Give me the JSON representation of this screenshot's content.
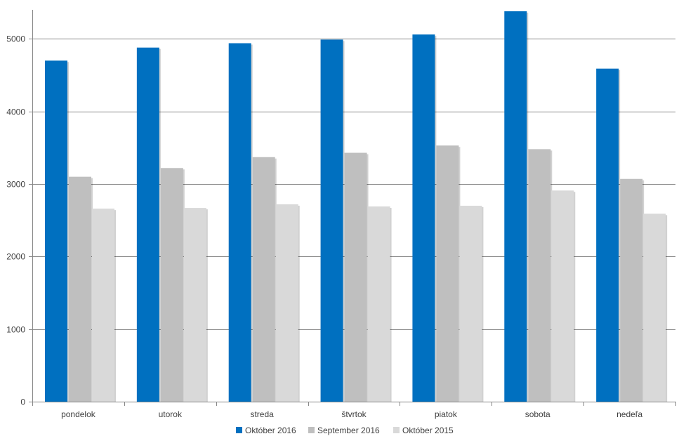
{
  "chart_data": {
    "type": "bar",
    "categories": [
      "pondelok",
      "utorok",
      "streda",
      "štvrtok",
      "piatok",
      "sobota",
      "nedeľa"
    ],
    "series": [
      {
        "name": "Október 2016",
        "color": "#0070C0",
        "values": [
          4700,
          4880,
          4940,
          4990,
          5060,
          5380,
          4590
        ]
      },
      {
        "name": "September 2016",
        "color": "#BFBFBF",
        "values": [
          3100,
          3220,
          3370,
          3430,
          3530,
          3480,
          3070
        ]
      },
      {
        "name": "Október 2015",
        "color": "#D9D9D9",
        "values": [
          2660,
          2670,
          2720,
          2690,
          2700,
          2910,
          2590
        ]
      }
    ],
    "ylim": [
      0,
      5400
    ],
    "yticks": [
      0,
      1000,
      2000,
      3000,
      4000,
      5000
    ],
    "grid": true,
    "legend_position": "bottom",
    "title": "",
    "xlabel": "",
    "ylabel": ""
  }
}
